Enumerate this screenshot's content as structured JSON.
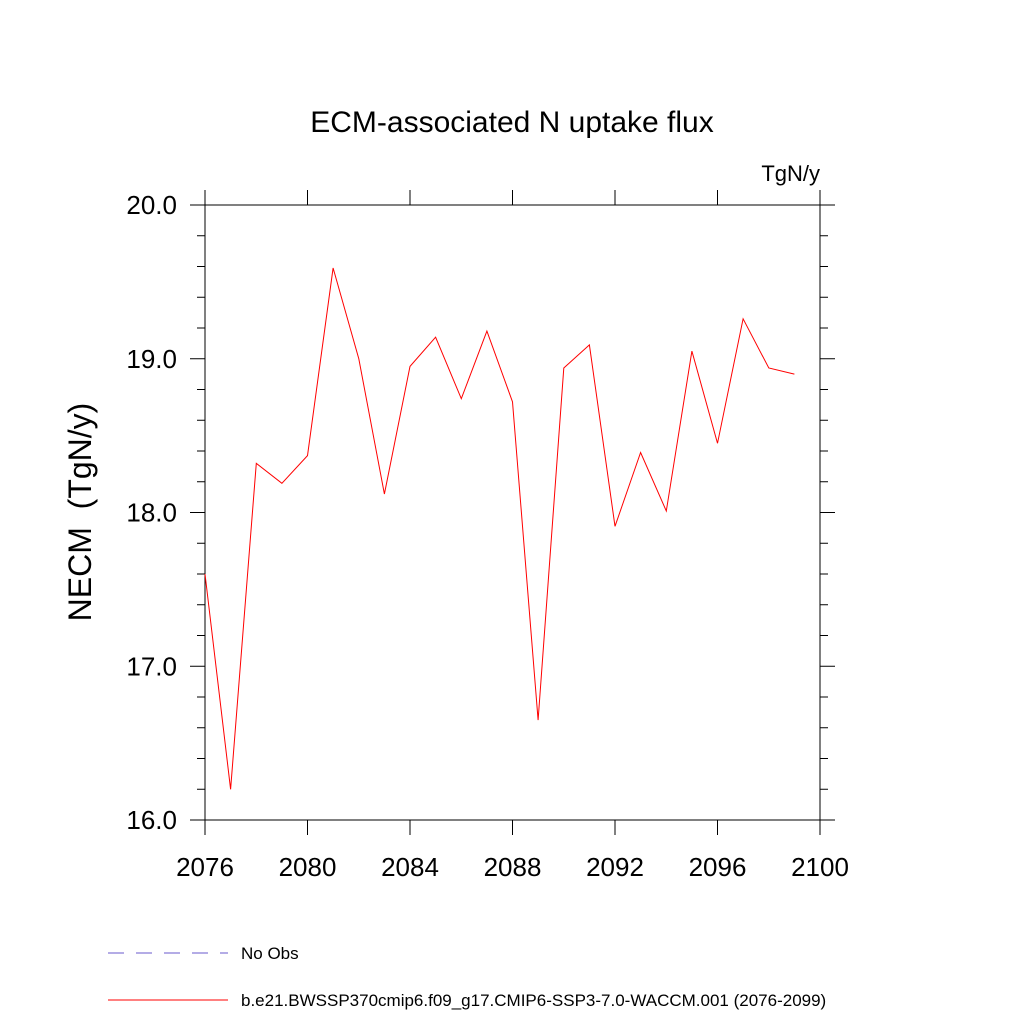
{
  "chart_data": {
    "type": "line",
    "title": "ECM-associated N uptake flux",
    "units": "TgN/y",
    "ylabel": "NECM  (TgN/y)",
    "xlabel": "",
    "xlim": [
      2076,
      2100
    ],
    "ylim": [
      16.0,
      20.0
    ],
    "xticks": [
      2076,
      2080,
      2084,
      2088,
      2092,
      2096,
      2100
    ],
    "xtick_labels": [
      "2076",
      "2080",
      "2084",
      "2088",
      "2092",
      "2096",
      "2100"
    ],
    "yticks": [
      16.0,
      17.0,
      18.0,
      19.0,
      20.0
    ],
    "ytick_labels": [
      "16.0",
      "17.0",
      "18.0",
      "19.0",
      "20.0"
    ],
    "grid": false,
    "series": [
      {
        "name": "b.e21.BWSSP370cmip6.f09_g17.CMIP6-SSP3-7.0-WACCM.001 (2076-2099)",
        "color": "#ff0000",
        "style": "solid",
        "x": [
          2076,
          2077,
          2078,
          2079,
          2080,
          2081,
          2082,
          2083,
          2084,
          2085,
          2086,
          2087,
          2088,
          2089,
          2090,
          2091,
          2092,
          2093,
          2094,
          2095,
          2096,
          2097,
          2098,
          2099
        ],
        "y": [
          17.6,
          16.2,
          18.32,
          18.19,
          18.37,
          19.59,
          19.0,
          18.12,
          18.95,
          19.14,
          18.74,
          19.18,
          18.72,
          16.65,
          18.94,
          19.09,
          17.91,
          18.39,
          18.01,
          19.05,
          18.45,
          19.26,
          18.94,
          18.9
        ]
      }
    ],
    "legend": {
      "placement": "bottom-left",
      "entries": [
        {
          "label": "No Obs",
          "color": "#6a5acd",
          "style": "dashed"
        },
        {
          "label": "b.e21.BWSSP370cmip6.f09_g17.CMIP6-SSP3-7.0-WACCM.001 (2076-2099)",
          "color": "#ff0000",
          "style": "solid"
        }
      ]
    }
  }
}
